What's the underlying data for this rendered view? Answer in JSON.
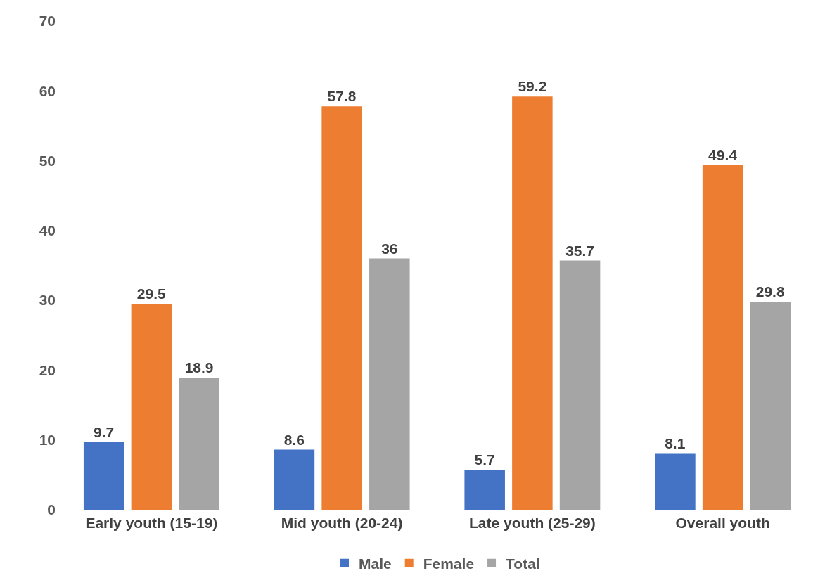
{
  "chart_data": {
    "type": "bar",
    "categories": [
      "Early youth (15-19)",
      "Mid youth (20-24)",
      "Late youth (25-29)",
      "Overall youth"
    ],
    "series": [
      {
        "name": "Male",
        "color": "#4472c4",
        "values": [
          9.7,
          8.6,
          5.7,
          8.1
        ]
      },
      {
        "name": "Female",
        "color": "#ed7d31",
        "values": [
          29.5,
          57.8,
          59.2,
          49.4
        ]
      },
      {
        "name": "Total",
        "color": "#a5a5a5",
        "values": [
          18.9,
          36,
          35.7,
          29.8
        ]
      }
    ],
    "ylim": [
      0,
      70
    ],
    "yticks": [
      0,
      10,
      20,
      30,
      40,
      50,
      60,
      70
    ],
    "grid": false,
    "legend": "bottom",
    "data_labels": true
  }
}
